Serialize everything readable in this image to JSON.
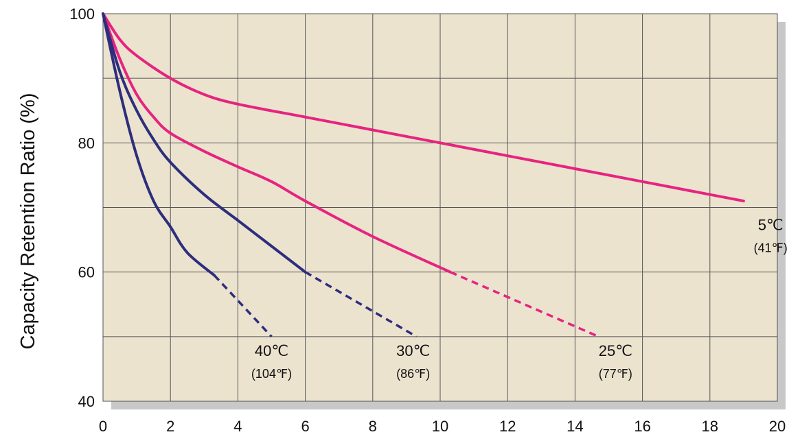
{
  "chart_data": {
    "type": "line",
    "title": "",
    "xlabel": "",
    "ylabel": "Capacity Retention Ratio (%)",
    "xlim": [
      0,
      20
    ],
    "ylim": [
      40,
      100
    ],
    "xticks": [
      "0",
      "2",
      "4",
      "6",
      "8",
      "10",
      "12",
      "14",
      "16",
      "18",
      "20"
    ],
    "yticks": [
      "40",
      "60",
      "80",
      "100"
    ],
    "grid": true,
    "colors": {
      "plot_background": "#ece3cf",
      "grid": "#555555",
      "shadow": "#c8c8c8",
      "magenta": "#e6247f",
      "navy": "#2e2e7e"
    },
    "series": [
      {
        "name": "5℃",
        "label_main": "5℃",
        "label_sub": "(41℉)",
        "color": "magenta",
        "solid": [
          [
            0,
            100
          ],
          [
            0.5,
            96
          ],
          [
            1,
            93.5
          ],
          [
            2,
            90
          ],
          [
            3,
            87.5
          ],
          [
            4,
            86
          ],
          [
            6,
            84
          ],
          [
            8,
            82
          ],
          [
            10,
            80
          ],
          [
            12,
            78
          ],
          [
            14,
            76
          ],
          [
            16,
            74
          ],
          [
            19,
            71
          ]
        ],
        "dashed": []
      },
      {
        "name": "25℃",
        "label_main": "25℃",
        "label_sub": "(77℉)",
        "color": "magenta",
        "solid": [
          [
            0,
            100
          ],
          [
            0.5,
            93
          ],
          [
            1,
            87.5
          ],
          [
            1.5,
            84
          ],
          [
            2,
            81.5
          ],
          [
            3,
            78.7
          ],
          [
            4,
            76.3
          ],
          [
            5,
            74
          ],
          [
            6,
            71
          ],
          [
            8,
            65.5
          ],
          [
            10.3,
            60
          ]
        ],
        "dashed": [
          [
            10.3,
            60
          ],
          [
            14.7,
            50
          ]
        ]
      },
      {
        "name": "30℃",
        "label_main": "30℃",
        "label_sub": "(86℉)",
        "color": "navy",
        "solid": [
          [
            0,
            100
          ],
          [
            0.5,
            91
          ],
          [
            1,
            85
          ],
          [
            1.5,
            80.5
          ],
          [
            2,
            77
          ],
          [
            3,
            72
          ],
          [
            4,
            68
          ],
          [
            5,
            64
          ],
          [
            6,
            60
          ]
        ],
        "dashed": [
          [
            6,
            60
          ],
          [
            9.3,
            50
          ]
        ]
      },
      {
        "name": "40℃",
        "label_main": "40℃",
        "label_sub": "(104℉)",
        "color": "navy",
        "solid": [
          [
            0,
            100
          ],
          [
            0.5,
            88
          ],
          [
            1,
            78
          ],
          [
            1.5,
            71
          ],
          [
            2,
            67
          ],
          [
            2.5,
            63
          ],
          [
            3.3,
            59.5
          ]
        ],
        "dashed": [
          [
            3.3,
            59.5
          ],
          [
            5,
            50
          ]
        ]
      }
    ],
    "annotations": [
      {
        "series": "5℃",
        "anchor": [
          19.8,
          66.5
        ]
      },
      {
        "series": "25℃",
        "anchor": [
          15.2,
          47
        ]
      },
      {
        "series": "30℃",
        "anchor": [
          9.2,
          47
        ]
      },
      {
        "series": "40℃",
        "anchor": [
          5,
          47
        ]
      }
    ]
  }
}
